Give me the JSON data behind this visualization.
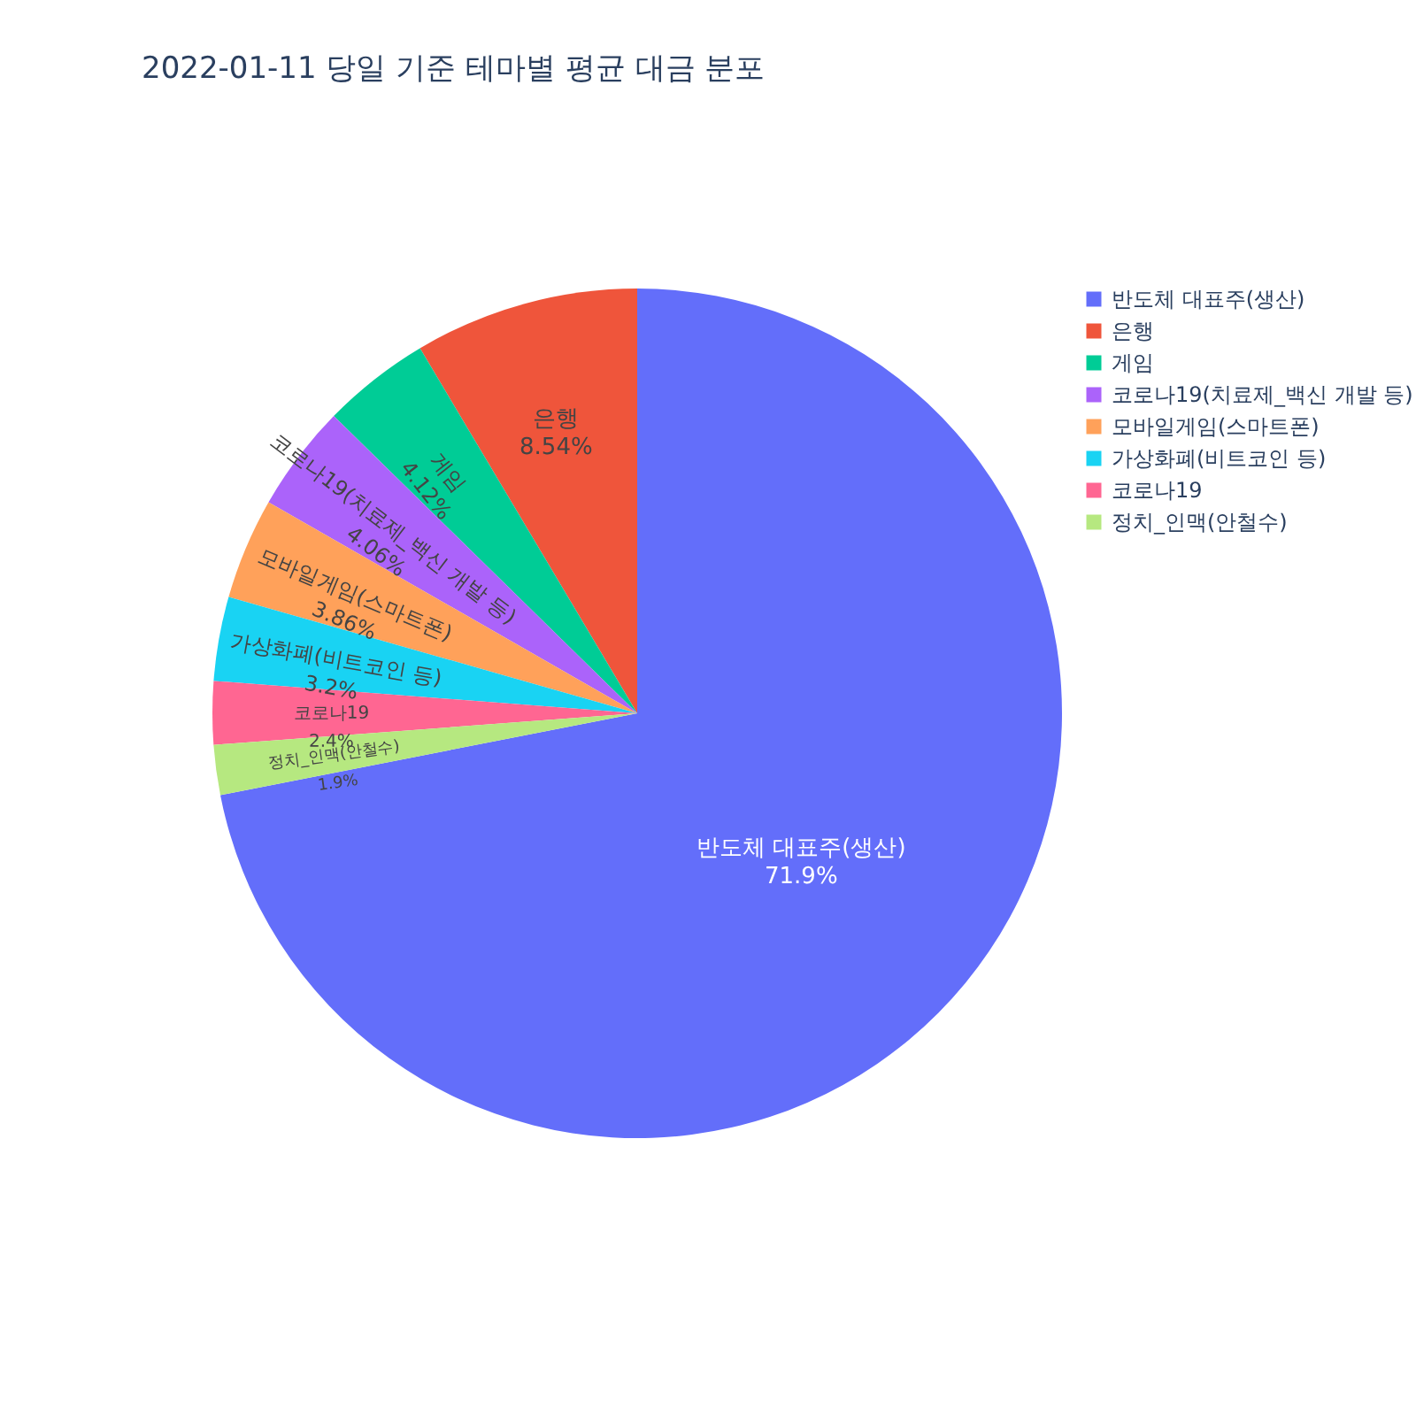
{
  "chart_data": {
    "type": "pie",
    "title": "2022-01-11 당일 기준 테마별 평균 대금 분포",
    "categories": [
      "반도체 대표주(생산)",
      "은행",
      "게임",
      "코로나19(치료제_백신 개발 등)",
      "모바일게임(스마트폰)",
      "가상화폐(비트코인 등)",
      "코로나19",
      "정치_인맥(안철수)"
    ],
    "values": [
      71.9,
      8.54,
      4.12,
      4.06,
      3.86,
      3.2,
      2.4,
      1.9
    ],
    "value_labels": [
      "71.9%",
      "8.54%",
      "4.12%",
      "4.06%",
      "3.86%",
      "3.2%",
      "2.4%",
      "1.9%"
    ],
    "colors": [
      "#636efa",
      "#ef553b",
      "#00cc96",
      "#ab63fa",
      "#ffa15a",
      "#19d3f3",
      "#ff6692",
      "#b6e880"
    ],
    "legend": "right"
  }
}
